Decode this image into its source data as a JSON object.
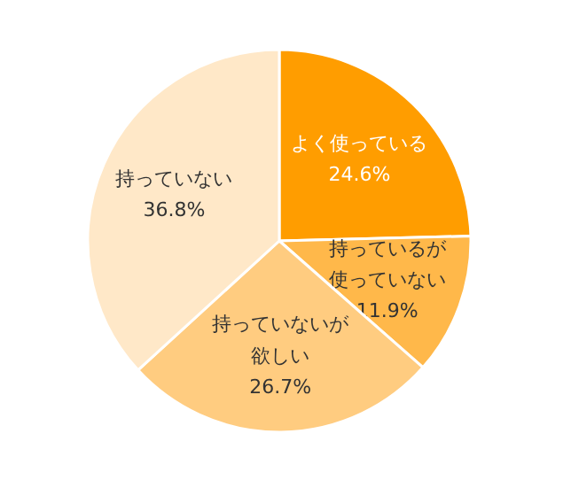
{
  "chart_data": {
    "type": "pie",
    "categories": [
      "よく使っている",
      "持っているが使っていない",
      "持っていないが欲しい",
      "持っていない"
    ],
    "values": [
      24.6,
      11.9,
      26.7,
      36.8
    ],
    "value_labels": [
      "24.6%",
      "11.9%",
      "26.7%",
      "36.8%"
    ],
    "colors": [
      "#ff9d00",
      "#ffb84a",
      "#ffcc80",
      "#ffe8c8"
    ],
    "legend": false
  }
}
